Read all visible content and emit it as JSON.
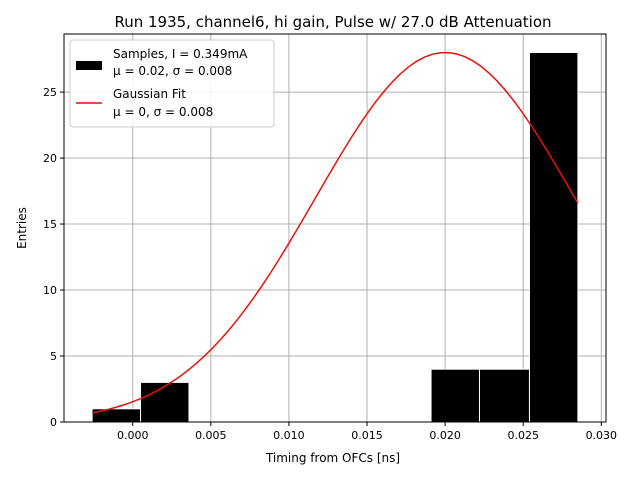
{
  "chart_data": {
    "type": "bar",
    "title": "Run 1935, channel6, hi gain, Pulse w/ 27.0 dB Attenuation",
    "xlabel": "Timing from OFCs [ns]",
    "ylabel": "Entries",
    "xlim": [
      -0.0044,
      0.0303
    ],
    "ylim": [
      0,
      29.4
    ],
    "xticks": [
      0.0,
      0.005,
      0.01,
      0.015,
      0.02,
      0.025,
      0.03
    ],
    "xtick_labels": [
      "0.000",
      "0.005",
      "0.010",
      "0.015",
      "0.020",
      "0.025",
      "0.030"
    ],
    "yticks": [
      0,
      5,
      10,
      15,
      20,
      25
    ],
    "ytick_labels": [
      "0",
      "5",
      "10",
      "15",
      "20",
      "25"
    ],
    "grid": true,
    "legend_position": "top-left",
    "histogram": {
      "name_line1": "Samples, I = 0.349mA",
      "name_line2": "μ = 0.02, σ = 0.008",
      "color": "#000000",
      "edge_color": "#ffffff",
      "bins": [
        {
          "x0": -0.0026,
          "x1": 0.0005,
          "count": 1
        },
        {
          "x0": 0.0005,
          "x1": 0.0036,
          "count": 3
        },
        {
          "x0": 0.0036,
          "x1": 0.0067,
          "count": 0
        },
        {
          "x0": 0.0067,
          "x1": 0.0098,
          "count": 0
        },
        {
          "x0": 0.0098,
          "x1": 0.0129,
          "count": 0
        },
        {
          "x0": 0.0129,
          "x1": 0.016,
          "count": 0
        },
        {
          "x0": 0.016,
          "x1": 0.0191,
          "count": 0
        },
        {
          "x0": 0.0191,
          "x1": 0.0222,
          "count": 4
        },
        {
          "x0": 0.0222,
          "x1": 0.0254,
          "count": 4
        },
        {
          "x0": 0.0254,
          "x1": 0.0285,
          "count": 28
        }
      ]
    },
    "fit": {
      "name_line1": "Gaussian Fit",
      "name_line2": "μ = 0, σ = 0.008",
      "color": "#e8120c",
      "x_range": [
        -0.0026,
        0.0285
      ],
      "amplitude": 28.0,
      "mean": 0.02,
      "sigma": 0.0083,
      "points": 60
    }
  }
}
